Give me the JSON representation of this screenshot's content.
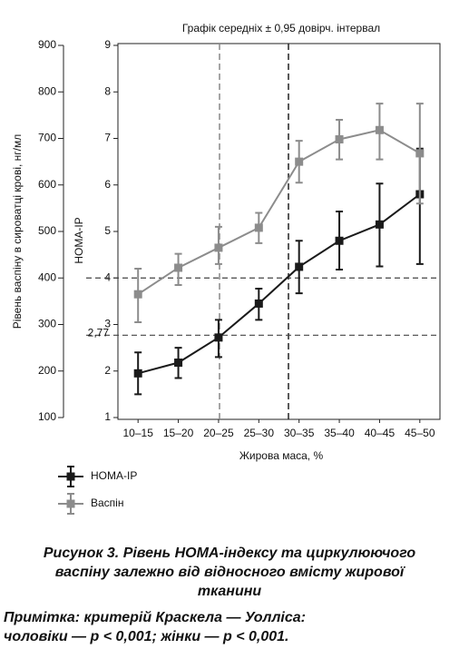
{
  "chart_data": {
    "type": "errorbar-line",
    "title": "Графік середніх ± 0,95 довірч. інтервал",
    "xlabel": "Жирова маса, %",
    "ylabel": "Рівень васпіну в сироватці крові, нг/мл",
    "y2label": "HOMA-IP",
    "categories": [
      "10–15",
      "15–20",
      "20–25",
      "25–30",
      "30–35",
      "35–40",
      "40–45",
      "45–50"
    ],
    "ylim": [
      100,
      900
    ],
    "yticks": [
      100,
      200,
      300,
      400,
      500,
      600,
      700,
      800,
      900
    ],
    "y2lim": [
      1,
      9
    ],
    "y2ticks": [
      1,
      2,
      3,
      4,
      5,
      6,
      7,
      8,
      9
    ],
    "hlines": [
      {
        "value": 4,
        "axis": "y2"
      },
      {
        "value": 2.77,
        "label": "2,77",
        "axis": "y2"
      }
    ],
    "series": [
      {
        "name": "HOMA-IP",
        "color": "#1a1a1a",
        "axis": "y2",
        "values": [
          1.95,
          2.18,
          2.72,
          3.45,
          4.24,
          4.8,
          5.15,
          5.8
        ],
        "lower": [
          1.5,
          1.85,
          2.3,
          3.1,
          3.67,
          4.18,
          4.25,
          4.3
        ],
        "upper": [
          2.4,
          2.5,
          3.1,
          3.77,
          4.8,
          5.43,
          6.03,
          6.78
        ]
      },
      {
        "name": "Васпін",
        "color": "#8c8c8c",
        "axis": "y",
        "values": [
          365,
          422,
          465,
          508,
          650,
          698,
          718,
          668
        ],
        "lower": [
          305,
          385,
          430,
          475,
          605,
          655,
          655,
          560
        ],
        "upper": [
          420,
          452,
          510,
          540,
          695,
          740,
          775,
          775
        ]
      }
    ]
  },
  "caption": [
    "Рисунок 3. Рівень НОМА-індексу та циркулюючого",
    "васпіну залежно від відносного вмісту жирової",
    "тканини"
  ],
  "note": [
    "Примітка: критерій Краскела — Уолліса:",
    "чоловіки — p < 0,001; жінки — p < 0,001."
  ]
}
